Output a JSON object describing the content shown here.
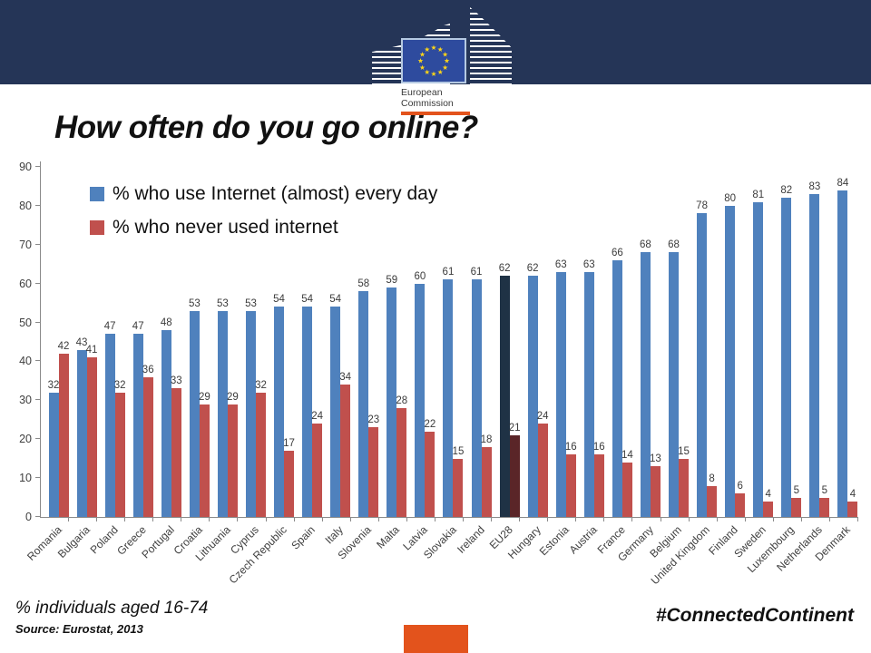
{
  "header": {
    "logo_caption_line1": "European",
    "logo_caption_line2": "Commission"
  },
  "title": "How often do you go online?",
  "legend": [
    {
      "label": "% who use Internet (almost) every day",
      "color": "#4F81BD"
    },
    {
      "label": "% who never used internet",
      "color": "#C0504D"
    }
  ],
  "chart_data": {
    "type": "bar",
    "categories": [
      "Romania",
      "Bulgaria",
      "Poland",
      "Greece",
      "Portugal",
      "Croatia",
      "Lithuania",
      "Cyprus",
      "Czech Republic",
      "Spain",
      "Italy",
      "Slovenia",
      "Malta",
      "Latvia",
      "Slovakia",
      "Ireland",
      "EU28",
      "Hungary",
      "Estonia",
      "Austria",
      "France",
      "Germany",
      "Belgium",
      "United Kingdom",
      "Finland",
      "Sweden",
      "Luxembourg",
      "Netherlands",
      "Denmark"
    ],
    "series": [
      {
        "name": "% who use Internet (almost) every day",
        "color": "#4F81BD",
        "values": [
          32,
          43,
          47,
          47,
          48,
          53,
          53,
          53,
          54,
          54,
          54,
          58,
          59,
          60,
          61,
          61,
          62,
          62,
          63,
          63,
          66,
          68,
          68,
          78,
          80,
          81,
          82,
          83,
          84
        ]
      },
      {
        "name": "% who never used internet",
        "color": "#C0504D",
        "values": [
          42,
          41,
          32,
          36,
          33,
          29,
          29,
          32,
          17,
          24,
          34,
          23,
          28,
          22,
          15,
          18,
          21,
          24,
          16,
          16,
          14,
          13,
          15,
          8,
          6,
          4,
          5,
          5,
          4
        ]
      }
    ],
    "highlight_category": "EU28",
    "highlight_colors": [
      "#1F3245",
      "#5A2528"
    ],
    "ylim": [
      0,
      90
    ],
    "yticks": [
      0,
      10,
      20,
      30,
      40,
      50,
      60,
      70,
      80,
      90
    ],
    "grid": false,
    "data_labels": true,
    "legend_position": "inside-top-left"
  },
  "footer": {
    "note": "% individuals aged 16-74",
    "source": "Source: Eurostat, 2013",
    "hashtag": "#ConnectedContinent"
  },
  "colors": {
    "banner": "#253557",
    "accent_orange": "#E3531C",
    "flag_blue": "#2E4B9E",
    "star_yellow": "#FFD617"
  }
}
